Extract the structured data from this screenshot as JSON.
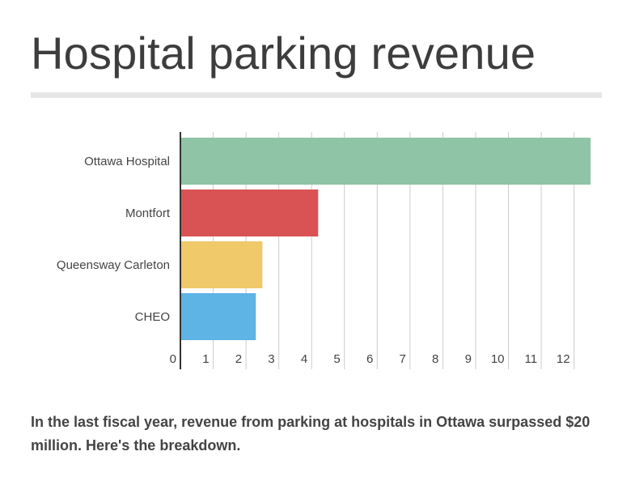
{
  "header": {
    "title": "Hospital parking revenue"
  },
  "chart_data": {
    "type": "bar",
    "orientation": "horizontal",
    "categories": [
      "Ottawa Hospital",
      "Montfort",
      "Queensway Carleton",
      "CHEO"
    ],
    "values": [
      12.9,
      4.2,
      2.5,
      2.3
    ],
    "colors": [
      "#8fc4a6",
      "#d95354",
      "#efc96a",
      "#5db4e5"
    ],
    "xlim": [
      0,
      12.9
    ],
    "xticks": [
      "0",
      "1",
      "2",
      "3",
      "4",
      "5",
      "6",
      "7",
      "8",
      "9",
      "10",
      "11",
      "12"
    ],
    "xlabel": "",
    "ylabel": "",
    "grid": true,
    "legend": "none"
  },
  "footer": {
    "caption": "In the last fiscal year, revenue from parking at hospitals in Ottawa surpassed $20 million. Here's the breakdown."
  }
}
